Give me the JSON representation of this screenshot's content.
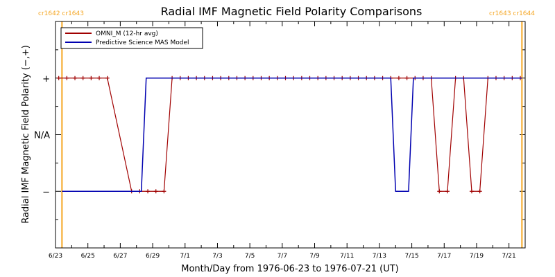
{
  "chart_data": {
    "type": "line",
    "title": "Radial IMF Magnetic Field Polarity Comparisons",
    "xlabel": "Month/Day from 1976-06-23 to 1976-07-21 (UT)",
    "ylabel": "Radial IMF Magnetic Field Polarity (−,+)",
    "x_ticks": [
      "6/23",
      "6/25",
      "6/27",
      "6/29",
      "7/1",
      "7/3",
      "7/5",
      "7/7",
      "7/9",
      "7/11",
      "7/13",
      "7/15",
      "7/17",
      "7/19",
      "7/21"
    ],
    "y_ticks": [
      {
        "label": "+",
        "value": 1
      },
      {
        "label": "N/A",
        "value": 0
      },
      {
        "label": "−",
        "value": -1
      }
    ],
    "xlim_days": [
      0,
      29
    ],
    "ylim": [
      -2,
      2
    ],
    "legend_position": "top-left",
    "carrington_markers": [
      {
        "day": 0.4,
        "label": "cr1642 cr1643",
        "side": "left"
      },
      {
        "day": 28.8,
        "label": "cr1643 cr1644",
        "side": "right"
      }
    ],
    "series": [
      {
        "name": "OMNI_M (12-hr avg)",
        "color": "#a00000",
        "marker": "plus",
        "x": [
          0.2,
          0.7,
          1.2,
          1.7,
          2.2,
          2.7,
          3.2,
          4.7,
          5.2,
          5.7,
          6.2,
          6.7,
          7.2,
          7.7,
          8.2,
          8.7,
          9.2,
          9.7,
          10.2,
          10.7,
          11.2,
          11.7,
          12.2,
          12.7,
          13.2,
          13.7,
          14.2,
          14.7,
          15.2,
          15.7,
          16.2,
          16.7,
          17.2,
          17.7,
          18.2,
          18.7,
          19.2,
          19.7,
          20.2,
          20.7,
          21.2,
          21.7,
          22.2,
          22.7,
          23.2,
          23.7,
          24.2,
          24.7,
          25.2,
          25.7,
          26.2,
          26.7,
          27.2,
          27.7,
          28.2,
          28.7
        ],
        "y": [
          1,
          1,
          1,
          1,
          1,
          1,
          1,
          -1,
          -1,
          -1,
          -1,
          -1,
          1,
          1,
          1,
          1,
          1,
          1,
          1,
          1,
          1,
          1,
          1,
          1,
          1,
          1,
          1,
          1,
          1,
          1,
          1,
          1,
          1,
          1,
          1,
          1,
          1,
          1,
          1,
          1,
          1,
          1,
          1,
          1,
          1,
          -1,
          -1,
          1,
          1,
          -1,
          -1,
          1,
          1,
          1,
          1,
          1
        ]
      },
      {
        "name": "Predictive Science MAS Model",
        "color": "#0000b0",
        "marker": "none",
        "x": [
          0.4,
          5.3,
          5.6,
          20.7,
          21.0,
          21.8,
          22.1,
          22.7,
          23.0,
          28.8
        ],
        "y": [
          -1,
          -1,
          1,
          1,
          -1,
          -1,
          1,
          1,
          1,
          1
        ]
      }
    ],
    "colors": {
      "border": "#000000",
      "cr_line": "#f5a623",
      "cr_label": "#f5a623",
      "omni": "#a00000",
      "mas": "#0000b0"
    }
  }
}
